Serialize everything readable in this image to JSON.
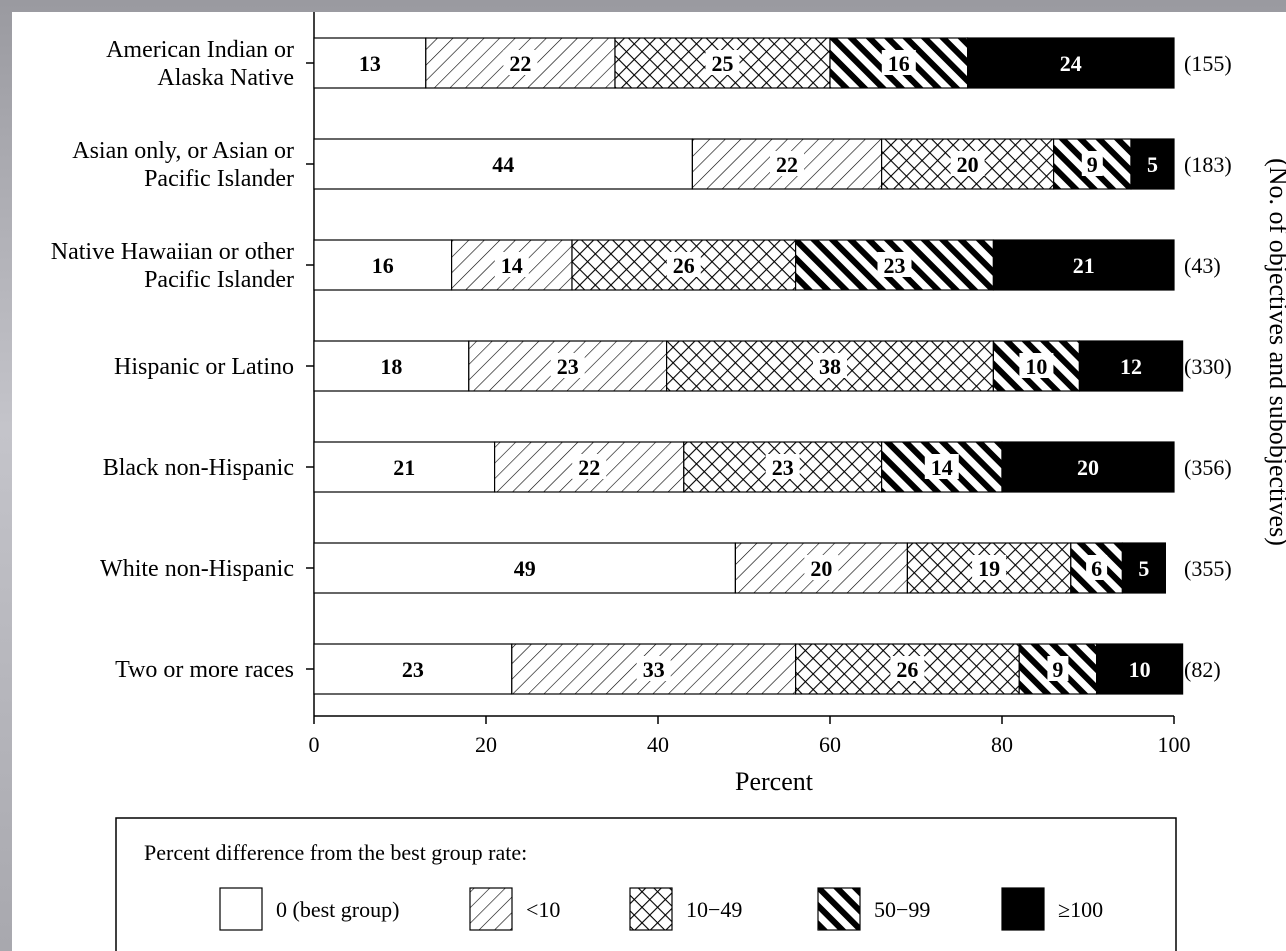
{
  "chart_data": {
    "type": "bar",
    "orientation": "horizontal",
    "stacked": true,
    "categories": [
      [
        "American Indian or",
        "Alaska Native"
      ],
      [
        "Asian only, or Asian or",
        "Pacific Islander"
      ],
      [
        "Native Hawaiian or other",
        "Pacific Islander"
      ],
      [
        "Hispanic or Latino"
      ],
      [
        "Black non-Hispanic"
      ],
      [
        "White non-Hispanic"
      ],
      [
        "Two or more races"
      ]
    ],
    "series": [
      {
        "name": "0 (best group)",
        "pattern": "white",
        "values": [
          13,
          44,
          16,
          18,
          21,
          49,
          23
        ]
      },
      {
        "name": "<10",
        "pattern": "diagonal",
        "values": [
          22,
          22,
          14,
          23,
          22,
          20,
          33
        ]
      },
      {
        "name": "10−49",
        "pattern": "crosshatch",
        "values": [
          25,
          20,
          26,
          38,
          23,
          19,
          26
        ]
      },
      {
        "name": "50−99",
        "pattern": "heavy-diagonal",
        "values": [
          16,
          9,
          23,
          10,
          14,
          6,
          9
        ]
      },
      {
        "name": "≥100",
        "pattern": "black",
        "values": [
          24,
          5,
          21,
          12,
          20,
          5,
          10
        ]
      }
    ],
    "counts": [
      "(155)",
      "(183)",
      "(43)",
      "(330)",
      "(356)",
      "(355)",
      "(82)"
    ],
    "xlabel": "Percent",
    "right_axis_label": "(No. of objectives and subobjectives)",
    "xlim": [
      0,
      100
    ],
    "xticks": [
      0,
      20,
      40,
      60,
      80,
      100
    ],
    "legend": {
      "title": "Percent difference from the best group rate:",
      "placement": "bottom"
    },
    "grid": false
  }
}
